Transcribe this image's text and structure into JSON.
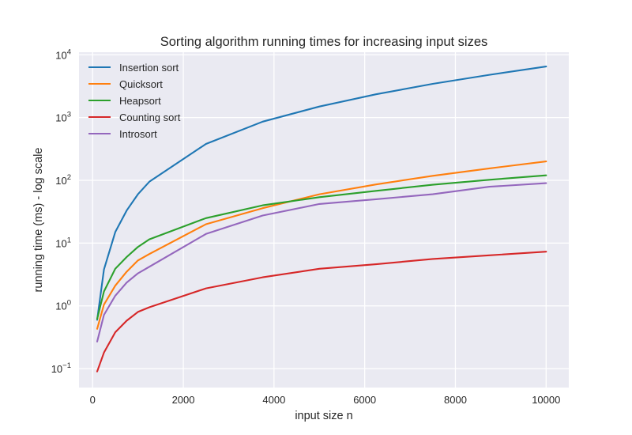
{
  "chart_data": {
    "type": "line",
    "title": "Sorting algorithm running times for increasing input sizes",
    "xlabel": "input size n",
    "ylabel": "running time (ms) - log scale",
    "yscale": "log",
    "xlim": [
      -300,
      10500
    ],
    "ylim": [
      0.05,
      11000
    ],
    "grid": true,
    "legend_position": "top-left",
    "xticks": [
      0,
      2000,
      4000,
      6000,
      8000,
      10000
    ],
    "xtick_labels": [
      "0",
      "2000",
      "4000",
      "6000",
      "8000",
      "10000"
    ],
    "yticks": [
      0.1,
      1,
      10,
      100,
      1000,
      10000
    ],
    "ytick_labels": [
      {
        "base": "10",
        "exp": "−1"
      },
      {
        "base": "10",
        "exp": "0"
      },
      {
        "base": "10",
        "exp": "1"
      },
      {
        "base": "10",
        "exp": "2"
      },
      {
        "base": "10",
        "exp": "3"
      },
      {
        "base": "10",
        "exp": "4"
      }
    ],
    "x": [
      100,
      250,
      500,
      750,
      1000,
      1250,
      2500,
      3750,
      5000,
      6250,
      7500,
      8750,
      10000
    ],
    "series": [
      {
        "name": "Insertion sort",
        "color": "#1f77b4",
        "values": [
          0.6,
          3.8,
          15,
          33,
          60,
          95,
          380,
          860,
          1500,
          2350,
          3450,
          4800,
          6500
        ]
      },
      {
        "name": "Quicksort",
        "color": "#ff7f0e",
        "values": [
          0.43,
          1.05,
          2.1,
          3.5,
          5.3,
          6.7,
          20,
          36,
          60,
          86,
          118,
          155,
          200
        ]
      },
      {
        "name": "Heapsort",
        "color": "#2ca02c",
        "values": [
          0.62,
          1.7,
          3.9,
          6.0,
          8.7,
          11.5,
          25,
          40,
          54,
          68,
          85,
          102,
          120
        ]
      },
      {
        "name": "Counting sort",
        "color": "#d62728",
        "values": [
          0.09,
          0.18,
          0.38,
          0.58,
          0.8,
          0.95,
          1.9,
          2.85,
          3.9,
          4.6,
          5.6,
          6.4,
          7.3
        ]
      },
      {
        "name": "Introsort",
        "color": "#9467bd",
        "values": [
          0.27,
          0.72,
          1.45,
          2.35,
          3.3,
          4.2,
          14,
          27.5,
          42,
          50,
          60,
          79,
          90
        ]
      }
    ]
  }
}
